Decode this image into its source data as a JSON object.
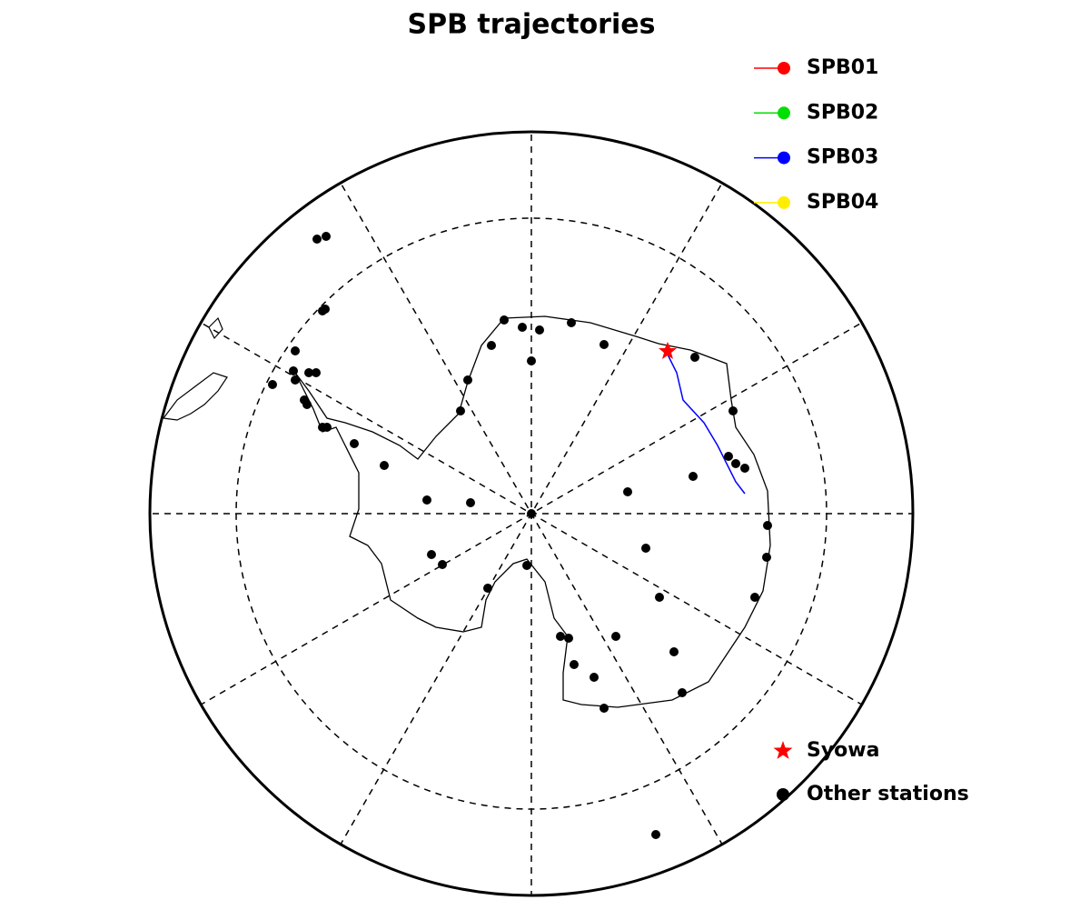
{
  "title": "SPB trajectories",
  "legend": {
    "trajectories": [
      {
        "name": "SPB01",
        "color": "#ff0000"
      },
      {
        "name": "SPB02",
        "color": "#00e000"
      },
      {
        "name": "SPB03",
        "color": "#0000ff"
      },
      {
        "name": "SPB04",
        "color": "#ffee00"
      }
    ],
    "markers": [
      {
        "name": "Syowa",
        "color": "#ff0000",
        "shape": "star"
      },
      {
        "name": "Other stations",
        "color": "#000000",
        "shape": "dot"
      }
    ]
  }
}
